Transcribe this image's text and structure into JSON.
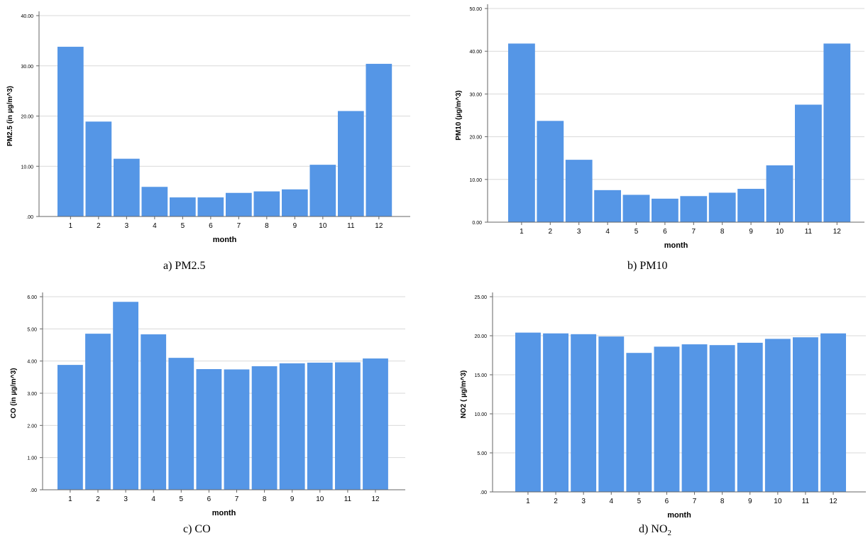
{
  "colors": {
    "bar": "#5596e6",
    "bar_stroke": "#ffffff",
    "grid": "#d9d9d9",
    "axis": "#666666",
    "text": "#000000"
  },
  "chart_data": [
    {
      "type": "bar",
      "caption": "a) PM2.5",
      "xlabel": "month",
      "ylabel": "PM2.5 (in µg/m^3)",
      "categories": [
        "1",
        "2",
        "3",
        "4",
        "5",
        "6",
        "7",
        "8",
        "9",
        "10",
        "11",
        "12"
      ],
      "values": [
        33.8,
        18.9,
        11.5,
        5.9,
        3.8,
        3.8,
        4.7,
        5.0,
        5.4,
        10.3,
        21.0,
        30.4
      ],
      "ylim": [
        0,
        40
      ],
      "yticks": [
        ".00",
        "10.00",
        "20.00",
        "30.00",
        "40.00"
      ],
      "grid": true
    },
    {
      "type": "bar",
      "caption": "b) PM10",
      "xlabel": "month",
      "ylabel": "PM10 (µg/m^3)",
      "categories": [
        "1",
        "2",
        "3",
        "4",
        "5",
        "6",
        "7",
        "8",
        "9",
        "10",
        "11",
        "12"
      ],
      "values": [
        41.8,
        23.7,
        14.6,
        7.5,
        6.4,
        5.5,
        6.1,
        6.9,
        7.8,
        13.3,
        27.5,
        41.8
      ],
      "ylim": [
        0,
        50
      ],
      "yticks": [
        "0.00",
        "10.00",
        "20.00",
        "30.00",
        "40.00",
        "50.00"
      ],
      "grid": true
    },
    {
      "type": "bar",
      "caption": "c) CO",
      "xlabel": "month",
      "ylabel": "CO (in µg/m^3)",
      "categories": [
        "1",
        "2",
        "3",
        "4",
        "5",
        "6",
        "7",
        "8",
        "9",
        "10",
        "11",
        "12"
      ],
      "values": [
        3.88,
        4.85,
        5.84,
        4.83,
        4.1,
        3.75,
        3.74,
        3.84,
        3.93,
        3.95,
        3.96,
        4.08
      ],
      "ylim": [
        0,
        6
      ],
      "yticks": [
        ".00",
        "1.00",
        "2.00",
        "3.00",
        "4.00",
        "5.00",
        "6.00"
      ],
      "grid": true
    },
    {
      "type": "bar",
      "caption": "d) NO2",
      "caption_main": "d) NO",
      "caption_sub": "2",
      "xlabel": "month",
      "ylabel": "NO2 ( µg/m^3)",
      "categories": [
        "1",
        "2",
        "3",
        "4",
        "5",
        "6",
        "7",
        "8",
        "9",
        "10",
        "11",
        "12"
      ],
      "values": [
        20.4,
        20.3,
        20.2,
        19.9,
        17.8,
        18.6,
        18.9,
        18.8,
        19.1,
        19.6,
        19.8,
        20.3
      ],
      "ylim": [
        0,
        25
      ],
      "yticks": [
        ".00",
        "5.00",
        "10.00",
        "15.00",
        "20.00",
        "25.00"
      ],
      "grid": true
    }
  ]
}
